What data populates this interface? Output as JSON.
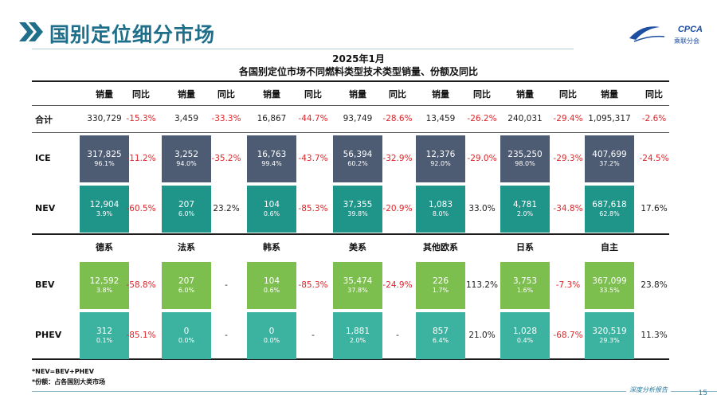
{
  "header": {
    "title": "国别定位细分市场",
    "logo_text": "CPCA",
    "logo_sub": "乘联分会"
  },
  "chart": {
    "title_line1": "2025年1月",
    "title_line2": "各国别定位市场不同燃料类型技术类型销量、份额及同比"
  },
  "table": {
    "col_headers": [
      "销量",
      "同比",
      "销量",
      "同比",
      "销量",
      "同比",
      "销量",
      "同比",
      "销量",
      "同比",
      "销量",
      "同比",
      "销量",
      "同比"
    ],
    "group_labels": [
      "德系",
      "法系",
      "韩系",
      "美系",
      "其他欧系",
      "日系",
      "自主"
    ],
    "rows": [
      {
        "label": "合计",
        "style": "plain",
        "cells": [
          {
            "value": "330,729",
            "share": "",
            "yoy": "-15.3%",
            "neg": true
          },
          {
            "value": "3,459",
            "share": "",
            "yoy": "-33.3%",
            "neg": true
          },
          {
            "value": "16,867",
            "share": "",
            "yoy": "-44.7%",
            "neg": true
          },
          {
            "value": "93,749",
            "share": "",
            "yoy": "-28.6%",
            "neg": true
          },
          {
            "value": "13,459",
            "share": "",
            "yoy": "-26.2%",
            "neg": true
          },
          {
            "value": "240,031",
            "share": "",
            "yoy": "-29.4%",
            "neg": true
          },
          {
            "value": "1,095,317",
            "share": "",
            "yoy": "-2.6%",
            "neg": true
          }
        ]
      },
      {
        "label": "ICE",
        "style": "dark",
        "cells": [
          {
            "value": "317,825",
            "share": "96.1%",
            "yoy": "-11.2%",
            "neg": true
          },
          {
            "value": "3,252",
            "share": "94.0%",
            "yoy": "-35.2%",
            "neg": true
          },
          {
            "value": "16,763",
            "share": "99.4%",
            "yoy": "-43.7%",
            "neg": true
          },
          {
            "value": "56,394",
            "share": "60.2%",
            "yoy": "-32.9%",
            "neg": true
          },
          {
            "value": "12,376",
            "share": "92.0%",
            "yoy": "-29.0%",
            "neg": true
          },
          {
            "value": "235,250",
            "share": "98.0%",
            "yoy": "-29.3%",
            "neg": true
          },
          {
            "value": "407,699",
            "share": "37.2%",
            "yoy": "-24.5%",
            "neg": true
          }
        ]
      },
      {
        "label": "NEV",
        "style": "teal",
        "cells": [
          {
            "value": "12,904",
            "share": "3.9%",
            "yoy": "-60.5%",
            "neg": true
          },
          {
            "value": "207",
            "share": "6.0%",
            "yoy": "23.2%",
            "neg": false
          },
          {
            "value": "104",
            "share": "0.6%",
            "yoy": "-85.3%",
            "neg": true
          },
          {
            "value": "37,355",
            "share": "39.8%",
            "yoy": "-20.9%",
            "neg": true
          },
          {
            "value": "1,083",
            "share": "8.0%",
            "yoy": "33.0%",
            "neg": false
          },
          {
            "value": "4,781",
            "share": "2.0%",
            "yoy": "-34.8%",
            "neg": true
          },
          {
            "value": "687,618",
            "share": "62.8%",
            "yoy": "17.6%",
            "neg": false
          }
        ]
      },
      {
        "label": "BEV",
        "style": "lgreen",
        "cells": [
          {
            "value": "12,592",
            "share": "3.8%",
            "yoy": "-58.8%",
            "neg": true
          },
          {
            "value": "207",
            "share": "6.0%",
            "yoy": "-",
            "neg": false
          },
          {
            "value": "104",
            "share": "0.6%",
            "yoy": "-85.3%",
            "neg": true
          },
          {
            "value": "35,474",
            "share": "37.8%",
            "yoy": "-24.9%",
            "neg": true
          },
          {
            "value": "226",
            "share": "1.7%",
            "yoy": "113.2%",
            "neg": false
          },
          {
            "value": "3,753",
            "share": "1.6%",
            "yoy": "-7.3%",
            "neg": true
          },
          {
            "value": "367,099",
            "share": "33.5%",
            "yoy": "23.8%",
            "neg": false
          }
        ]
      },
      {
        "label": "PHEV",
        "style": "mteal",
        "cells": [
          {
            "value": "312",
            "share": "0.1%",
            "yoy": "-85.1%",
            "neg": true
          },
          {
            "value": "0",
            "share": "0.0%",
            "yoy": "-",
            "neg": false
          },
          {
            "value": "0",
            "share": "0.0%",
            "yoy": "-",
            "neg": false
          },
          {
            "value": "1,881",
            "share": "2.0%",
            "yoy": "-",
            "neg": false
          },
          {
            "value": "857",
            "share": "6.4%",
            "yoy": "21.0%",
            "neg": false
          },
          {
            "value": "1,028",
            "share": "0.4%",
            "yoy": "-68.7%",
            "neg": true
          },
          {
            "value": "320,519",
            "share": "29.3%",
            "yoy": "11.3%",
            "neg": false
          }
        ]
      }
    ]
  },
  "notes": {
    "line1": "*NEV=BEV+PHEV",
    "line2": "*份额：占各国别大类市场"
  },
  "footer": {
    "label": "深度分析报告",
    "page": "15"
  }
}
